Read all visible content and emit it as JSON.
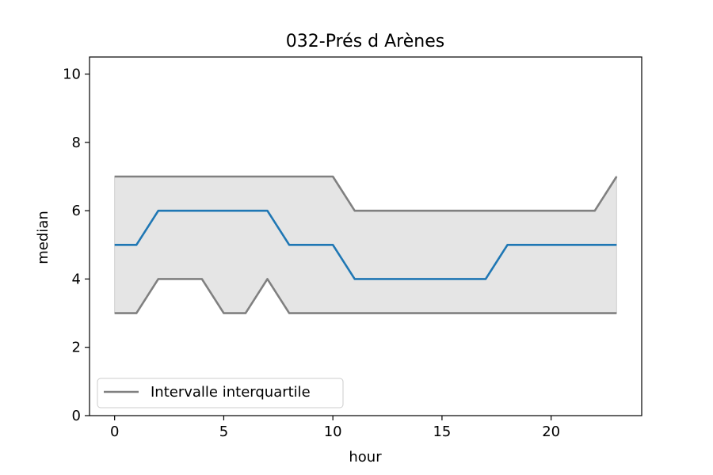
{
  "chart_data": {
    "type": "line",
    "title": "032-Prés d Arènes",
    "xlabel": "hour",
    "ylabel": "median",
    "xlim": [
      -1.15,
      24.15
    ],
    "ylim": [
      0,
      10.5
    ],
    "xticks": [
      0,
      5,
      10,
      15,
      20
    ],
    "yticks": [
      0,
      2,
      4,
      6,
      8,
      10
    ],
    "grid": false,
    "legend": {
      "location": "lower-left",
      "entries": [
        "Intervalle interquartile"
      ]
    },
    "x": [
      0,
      1,
      2,
      3,
      4,
      5,
      6,
      7,
      8,
      9,
      10,
      11,
      12,
      13,
      14,
      15,
      16,
      17,
      18,
      19,
      20,
      21,
      22,
      23
    ],
    "series": [
      {
        "role": "median",
        "color": "#1f77b4",
        "values": [
          5,
          5,
          6,
          6,
          6,
          6,
          6,
          6,
          5,
          5,
          5,
          4,
          4,
          4,
          4,
          4,
          4,
          4,
          5,
          5,
          5,
          5,
          5,
          5
        ]
      },
      {
        "role": "q3",
        "color": "#808080",
        "values": [
          7,
          7,
          7,
          7,
          7,
          7,
          7,
          7,
          7,
          7,
          7,
          6,
          6,
          6,
          6,
          6,
          6,
          6,
          6,
          6,
          6,
          6,
          6,
          7
        ]
      },
      {
        "role": "q1",
        "color": "#808080",
        "values": [
          3,
          3,
          4,
          4,
          4,
          3,
          3,
          4,
          3,
          3,
          3,
          3,
          3,
          3,
          3,
          3,
          3,
          3,
          3,
          3,
          3,
          3,
          3,
          3
        ]
      }
    ],
    "band_color": "#e5e5e5"
  }
}
